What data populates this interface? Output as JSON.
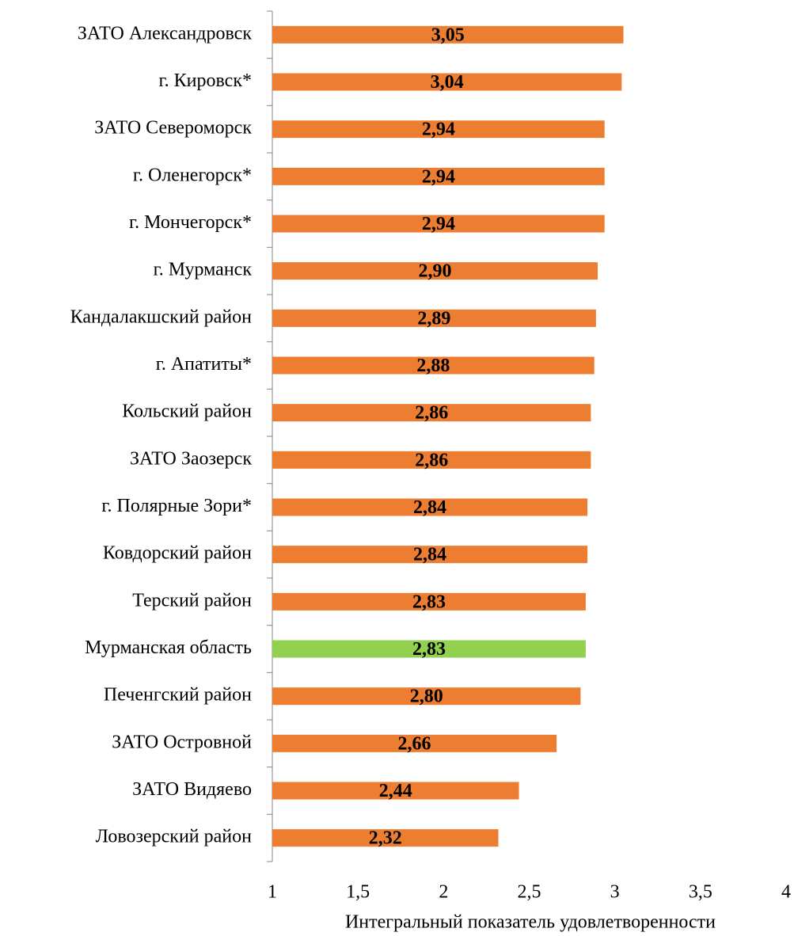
{
  "chart_data": {
    "type": "barh",
    "categories": [
      "ЗАТО Александровск",
      "г. Кировск*",
      "ЗАТО Североморск",
      "г. Оленегорск*",
      "г. Мончегорск*",
      "г. Мурманск",
      "Кандалакшский район",
      "г. Апатиты*",
      "Кольский район",
      "ЗАТО Заозерск",
      "г. Полярные Зори*",
      "Ковдорский район",
      "Терский район",
      "Мурманская область",
      "Печенгский район",
      "ЗАТО Островной",
      "ЗАТО Видяево",
      "Ловозерский район"
    ],
    "values": [
      3.05,
      3.04,
      2.94,
      2.94,
      2.94,
      2.9,
      2.89,
      2.88,
      2.86,
      2.86,
      2.84,
      2.84,
      2.83,
      2.83,
      2.8,
      2.66,
      2.44,
      2.32
    ],
    "value_labels": [
      "3,05",
      "3,04",
      "2,94",
      "2,94",
      "2,94",
      "2,90",
      "2,89",
      "2,88",
      "2,86",
      "2,86",
      "2,84",
      "2,84",
      "2,83",
      "2,83",
      "2,80",
      "2,66",
      "2,44",
      "2,32"
    ],
    "colors": [
      "#ED7D31",
      "#ED7D31",
      "#ED7D31",
      "#ED7D31",
      "#ED7D31",
      "#ED7D31",
      "#ED7D31",
      "#ED7D31",
      "#ED7D31",
      "#ED7D31",
      "#ED7D31",
      "#ED7D31",
      "#ED7D31",
      "#92D050",
      "#ED7D31",
      "#ED7D31",
      "#ED7D31",
      "#ED7D31"
    ],
    "xlabel": "Интегральный показатель удовлетворенности",
    "xlim": [
      1,
      4
    ],
    "xticks": [
      1,
      {
        "value": 1.5,
        "label": "1,5"
      },
      2,
      {
        "value": 2.5,
        "label": "2,5"
      },
      3,
      {
        "value": 3.5,
        "label": "3,5"
      },
      4
    ]
  }
}
